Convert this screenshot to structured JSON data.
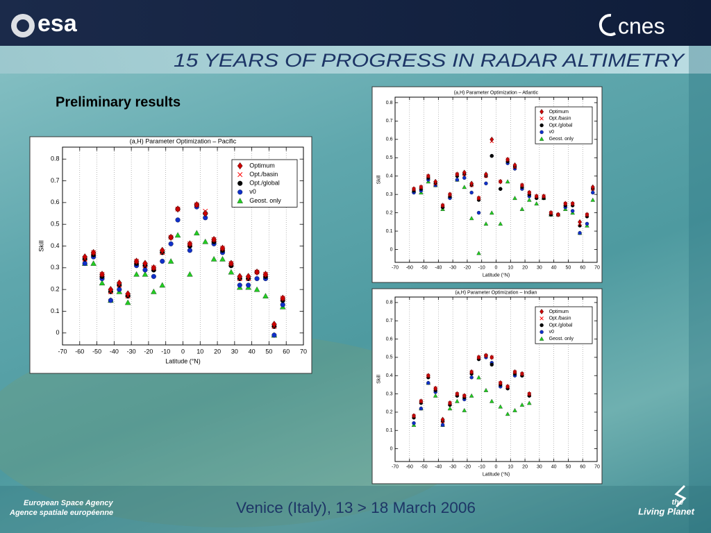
{
  "header": {
    "left_logo": "esa",
    "right_logo": "cnes",
    "banner": "15 YEARS OF PROGRESS IN RADAR ALTIMETRY"
  },
  "heading": "Preliminary results",
  "footer": {
    "venue": "Venice (Italy), 13 > 18 March 2006",
    "agency_en": "European Space Agency",
    "agency_fr": "Agence spatiale européenne",
    "tagline_top": "the",
    "tagline": "Living Planet"
  },
  "chart_data": [
    {
      "type": "scatter",
      "title": "(a,H) Parameter Optimization – Pacific",
      "xlabel": "Latitude (°N)",
      "ylabel": "Skill",
      "x": [
        -57,
        -52,
        -47,
        -42,
        -37,
        -32,
        -27,
        -22,
        -17,
        -12,
        -7,
        -3,
        4,
        8,
        13,
        18,
        23,
        28,
        33,
        38,
        43,
        48,
        53,
        58
      ],
      "series": [
        {
          "name": "Optimum",
          "color": "#cc0000",
          "marker": "diamond",
          "values": [
            0.35,
            0.37,
            0.27,
            0.2,
            0.23,
            0.18,
            0.33,
            0.32,
            0.3,
            0.38,
            0.44,
            0.57,
            0.41,
            0.59,
            0.55,
            0.43,
            0.39,
            0.32,
            0.26,
            0.26,
            0.28,
            0.27,
            0.04,
            0.16
          ]
        },
        {
          "name": "Opt./basin",
          "color": "#ff0000",
          "marker": "x",
          "values": [
            0.34,
            0.37,
            0.27,
            0.19,
            0.22,
            0.17,
            0.33,
            0.31,
            0.3,
            0.37,
            0.44,
            0.57,
            0.41,
            0.59,
            0.56,
            0.43,
            0.39,
            0.32,
            0.25,
            0.25,
            0.28,
            0.27,
            0.03,
            0.16
          ]
        },
        {
          "name": "Opt./global",
          "color": "#000000",
          "marker": "circle",
          "values": [
            0.34,
            0.36,
            0.26,
            0.19,
            0.22,
            0.17,
            0.32,
            0.31,
            0.29,
            0.37,
            0.44,
            0.57,
            0.4,
            0.59,
            0.55,
            0.42,
            0.38,
            0.31,
            0.25,
            0.25,
            0.28,
            0.26,
            0.03,
            0.15
          ]
        },
        {
          "name": "v0",
          "color": "#1030c8",
          "marker": "circle",
          "values": [
            0.32,
            0.35,
            0.25,
            0.15,
            0.2,
            0.17,
            0.31,
            0.29,
            0.26,
            0.33,
            0.41,
            0.52,
            0.38,
            0.58,
            0.53,
            0.41,
            0.37,
            0.31,
            0.22,
            0.22,
            0.25,
            0.25,
            -0.01,
            0.13
          ]
        },
        {
          "name": "Geost. only",
          "color": "#22cc22",
          "marker": "triangle",
          "values": [
            0.32,
            0.32,
            0.23,
            0.15,
            0.19,
            0.14,
            0.27,
            0.27,
            0.19,
            0.22,
            0.33,
            0.45,
            0.27,
            0.46,
            0.42,
            0.34,
            0.34,
            0.28,
            0.21,
            0.21,
            0.2,
            0.17,
            -0.01,
            0.12
          ]
        }
      ],
      "xlim": [
        -70,
        70
      ],
      "xticks": [
        -70,
        -60,
        -50,
        -40,
        -30,
        -20,
        -10,
        0,
        10,
        20,
        30,
        40,
        50,
        60,
        70
      ],
      "ylim": [
        -0.055,
        0.855
      ],
      "yticks": [
        0,
        0.1,
        0.2,
        0.3,
        0.4,
        0.5,
        0.6,
        0.7,
        0.8
      ],
      "grid": "x",
      "legend": "upper right"
    },
    {
      "type": "scatter",
      "title": "(a,H) Parameter Optimization – Atlantic",
      "xlabel": "Latitude (°N)",
      "ylabel": "Skill",
      "x": [
        -57,
        -52,
        -47,
        -42,
        -37,
        -32,
        -27,
        -22,
        -17,
        -12,
        -7,
        -3,
        3,
        8,
        13,
        18,
        23,
        28,
        33,
        38,
        43,
        48,
        53,
        58,
        63,
        67
      ],
      "series": [
        {
          "name": "Optimum",
          "color": "#cc0000",
          "marker": "diamond",
          "values": [
            0.33,
            0.34,
            0.4,
            0.37,
            0.24,
            0.3,
            0.41,
            0.42,
            0.36,
            0.28,
            0.41,
            0.6,
            0.37,
            0.49,
            0.46,
            0.35,
            0.31,
            0.29,
            0.29,
            0.2,
            0.19,
            0.25,
            0.25,
            0.15,
            0.19,
            0.34
          ]
        },
        {
          "name": "Opt./basin",
          "color": "#ff0000",
          "marker": "x",
          "values": [
            0.33,
            0.34,
            0.4,
            0.36,
            0.24,
            0.3,
            0.41,
            0.41,
            0.35,
            0.28,
            0.4,
            0.59,
            0.37,
            0.49,
            0.45,
            0.35,
            0.31,
            0.29,
            0.29,
            0.2,
            0.19,
            0.25,
            0.25,
            0.14,
            0.19,
            0.33
          ]
        },
        {
          "name": "Opt./global",
          "color": "#000000",
          "marker": "circle",
          "values": [
            0.32,
            0.33,
            0.39,
            0.36,
            0.23,
            0.29,
            0.4,
            0.41,
            0.35,
            0.27,
            0.4,
            0.51,
            0.33,
            0.48,
            0.45,
            0.34,
            0.3,
            0.28,
            0.28,
            0.19,
            0.19,
            0.24,
            0.24,
            0.13,
            0.18,
            0.33
          ]
        },
        {
          "name": "v0",
          "color": "#1030c8",
          "marker": "circle",
          "values": [
            0.31,
            0.32,
            0.38,
            0.35,
            0.23,
            0.28,
            0.38,
            0.39,
            0.31,
            0.2,
            0.36,
            0.51,
            0.33,
            0.47,
            0.44,
            0.33,
            0.29,
            0.28,
            0.28,
            0.19,
            0.19,
            0.23,
            0.21,
            0.09,
            0.14,
            0.31
          ]
        },
        {
          "name": "Geost. only",
          "color": "#22cc22",
          "marker": "triangle",
          "values": [
            0.32,
            0.31,
            0.37,
            0.35,
            0.22,
            0.29,
            0.38,
            0.34,
            0.17,
            -0.02,
            0.14,
            0.2,
            0.14,
            0.37,
            0.28,
            0.22,
            0.27,
            0.25,
            0.28,
            0.19,
            0.19,
            0.22,
            0.2,
            0.09,
            0.13,
            0.27
          ]
        }
      ],
      "xlim": [
        -70,
        70
      ],
      "xticks": [
        -70,
        -60,
        -50,
        -40,
        -30,
        -20,
        -10,
        0,
        10,
        20,
        30,
        40,
        50,
        60,
        70
      ],
      "ylim": [
        -0.07,
        0.83
      ],
      "yticks": [
        0,
        0.1,
        0.2,
        0.3,
        0.4,
        0.5,
        0.6,
        0.7,
        0.8
      ],
      "grid": "x",
      "legend": "upper right"
    },
    {
      "type": "scatter",
      "title": "(a,H) Parameter Optimization – Indian",
      "xlabel": "Latitude (°N)",
      "ylabel": "Skill",
      "x": [
        -57,
        -52,
        -47,
        -42,
        -37,
        -32,
        -27,
        -22,
        -17,
        -12,
        -7,
        -3,
        3,
        8,
        13,
        18,
        23
      ],
      "series": [
        {
          "name": "Optimum",
          "color": "#cc0000",
          "marker": "diamond",
          "values": [
            0.18,
            0.26,
            0.4,
            0.33,
            0.16,
            0.25,
            0.3,
            0.29,
            0.42,
            0.5,
            0.51,
            0.5,
            0.36,
            0.34,
            0.42,
            0.41,
            0.3
          ]
        },
        {
          "name": "Opt./basin",
          "color": "#ff0000",
          "marker": "x",
          "values": [
            0.18,
            0.26,
            0.4,
            0.33,
            0.15,
            0.25,
            0.3,
            0.29,
            0.42,
            0.5,
            0.51,
            0.5,
            0.36,
            0.34,
            0.42,
            0.41,
            0.3
          ]
        },
        {
          "name": "Opt./global",
          "color": "#000000",
          "marker": "circle",
          "values": [
            0.17,
            0.25,
            0.39,
            0.32,
            0.15,
            0.24,
            0.29,
            0.28,
            0.41,
            0.49,
            0.51,
            0.46,
            0.35,
            0.33,
            0.41,
            0.4,
            0.29
          ]
        },
        {
          "name": "v0",
          "color": "#1030c8",
          "marker": "circle",
          "values": [
            0.14,
            0.22,
            0.36,
            0.31,
            0.13,
            0.24,
            0.29,
            0.27,
            0.39,
            0.49,
            0.5,
            0.47,
            0.34,
            0.33,
            0.4,
            0.4,
            0.29
          ]
        },
        {
          "name": "Geost. only",
          "color": "#22cc22",
          "marker": "triangle",
          "values": [
            0.13,
            0.22,
            0.36,
            0.29,
            0.13,
            0.22,
            0.26,
            0.21,
            0.29,
            0.39,
            0.32,
            0.26,
            0.23,
            0.19,
            0.21,
            0.24,
            0.25
          ]
        }
      ],
      "xlim": [
        -70,
        70
      ],
      "xticks": [
        -70,
        -60,
        -50,
        -40,
        -30,
        -20,
        -10,
        0,
        10,
        20,
        30,
        40,
        50,
        60,
        70
      ],
      "ylim": [
        -0.07,
        0.83
      ],
      "yticks": [
        0,
        0.1,
        0.2,
        0.3,
        0.4,
        0.5,
        0.6,
        0.7,
        0.8
      ],
      "grid": "x",
      "legend": "upper right"
    }
  ]
}
